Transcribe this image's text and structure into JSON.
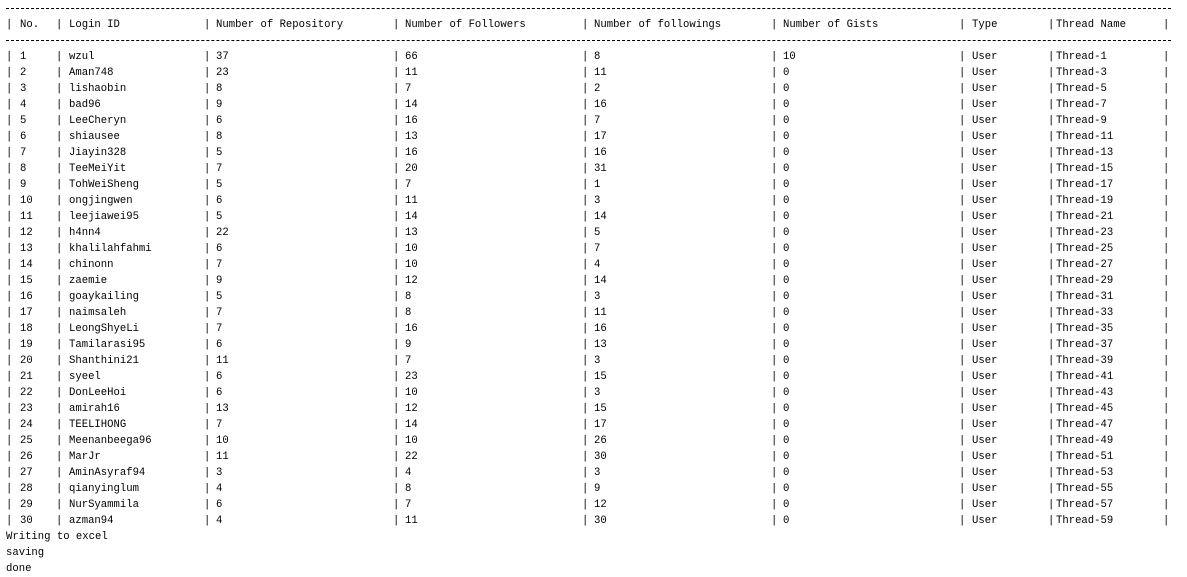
{
  "table": {
    "headers": [
      "No.",
      "Login ID",
      "Number of Repository",
      "Number of Followers",
      "Number of followings",
      "Number of Gists",
      "Type",
      "Thread Name"
    ],
    "rows": [
      [
        "1",
        "wzul",
        "37",
        "66",
        "8",
        "10",
        "User",
        "Thread-1"
      ],
      [
        "2",
        "Aman748",
        "23",
        "11",
        "11",
        "0",
        "User",
        "Thread-3"
      ],
      [
        "3",
        "lishaobin",
        "8",
        "7",
        "2",
        "0",
        "User",
        "Thread-5"
      ],
      [
        "4",
        "bad96",
        "9",
        "14",
        "16",
        "0",
        "User",
        "Thread-7"
      ],
      [
        "5",
        "LeeCheryn",
        "6",
        "16",
        "7",
        "0",
        "User",
        "Thread-9"
      ],
      [
        "6",
        "shiausee",
        "8",
        "13",
        "17",
        "0",
        "User",
        "Thread-11"
      ],
      [
        "7",
        "Jiayin328",
        "5",
        "16",
        "16",
        "0",
        "User",
        "Thread-13"
      ],
      [
        "8",
        "TeeMeiYit",
        "7",
        "20",
        "31",
        "0",
        "User",
        "Thread-15"
      ],
      [
        "9",
        "TohWeiSheng",
        "5",
        "7",
        "1",
        "0",
        "User",
        "Thread-17"
      ],
      [
        "10",
        "ongjingwen",
        "6",
        "11",
        "3",
        "0",
        "User",
        "Thread-19"
      ],
      [
        "11",
        "leejiawei95",
        "5",
        "14",
        "14",
        "0",
        "User",
        "Thread-21"
      ],
      [
        "12",
        "h4nn4",
        "22",
        "13",
        "5",
        "0",
        "User",
        "Thread-23"
      ],
      [
        "13",
        "khalilahfahmi",
        "6",
        "10",
        "7",
        "0",
        "User",
        "Thread-25"
      ],
      [
        "14",
        "chinonn",
        "7",
        "10",
        "4",
        "0",
        "User",
        "Thread-27"
      ],
      [
        "15",
        "zaemie",
        "9",
        "12",
        "14",
        "0",
        "User",
        "Thread-29"
      ],
      [
        "16",
        "goaykailing",
        "5",
        "8",
        "3",
        "0",
        "User",
        "Thread-31"
      ],
      [
        "17",
        "naimsaleh",
        "7",
        "8",
        "11",
        "0",
        "User",
        "Thread-33"
      ],
      [
        "18",
        "LeongShyeLi",
        "7",
        "16",
        "16",
        "0",
        "User",
        "Thread-35"
      ],
      [
        "19",
        "Tamilarasi95",
        "6",
        "9",
        "13",
        "0",
        "User",
        "Thread-37"
      ],
      [
        "20",
        "Shanthini21",
        "11",
        "7",
        "3",
        "0",
        "User",
        "Thread-39"
      ],
      [
        "21",
        "syeel",
        "6",
        "23",
        "15",
        "0",
        "User",
        "Thread-41"
      ],
      [
        "22",
        "DonLeeHoi",
        "6",
        "10",
        "3",
        "0",
        "User",
        "Thread-43"
      ],
      [
        "23",
        "amirah16",
        "13",
        "12",
        "15",
        "0",
        "User",
        "Thread-45"
      ],
      [
        "24",
        "TEELIHONG",
        "7",
        "14",
        "17",
        "0",
        "User",
        "Thread-47"
      ],
      [
        "25",
        "Meenanbeega96",
        "10",
        "10",
        "26",
        "0",
        "User",
        "Thread-49"
      ],
      [
        "26",
        "MarJr",
        "11",
        "22",
        "30",
        "0",
        "User",
        "Thread-51"
      ],
      [
        "27",
        "AminAsyraf94",
        "3",
        "4",
        "3",
        "0",
        "User",
        "Thread-53"
      ],
      [
        "28",
        "qianyinglum",
        "4",
        "8",
        "9",
        "0",
        "User",
        "Thread-55"
      ],
      [
        "29",
        "NurSyammila",
        "6",
        "7",
        "12",
        "0",
        "User",
        "Thread-57"
      ],
      [
        "30",
        "azman94",
        "4",
        "11",
        "30",
        "0",
        "User",
        "Thread-59"
      ]
    ]
  },
  "log": {
    "lines": [
      "Writing to excel",
      "saving",
      "done"
    ]
  }
}
